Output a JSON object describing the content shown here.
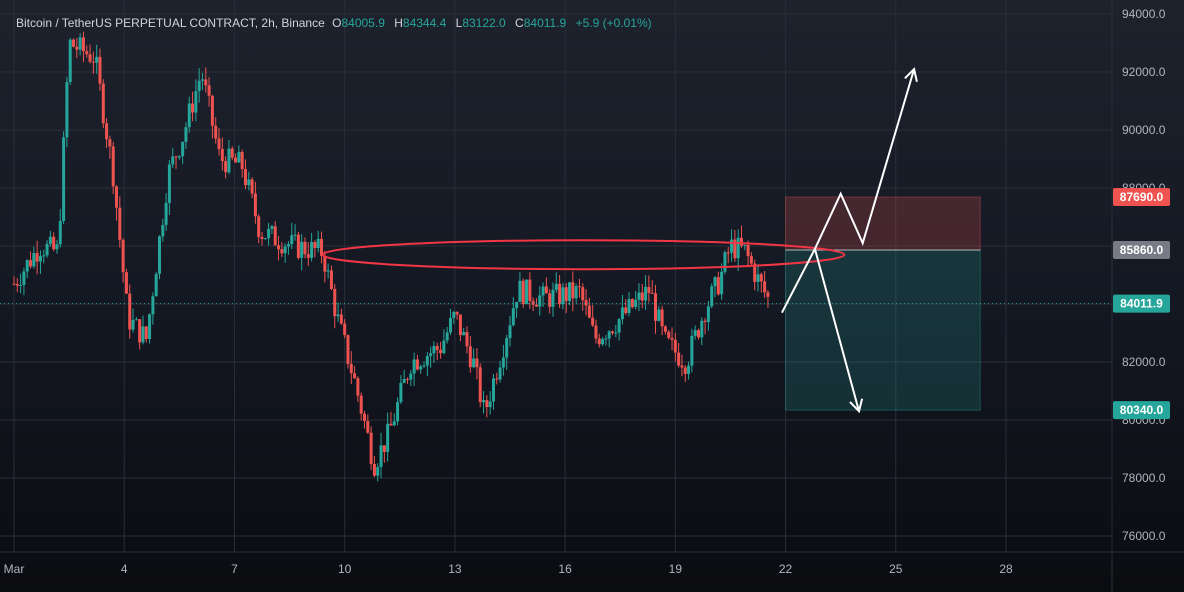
{
  "header": {
    "symbol": "Bitcoin / TetherUS PERPETUAL CONTRACT, 2h, Binance",
    "o_label": "O",
    "o_value": "84005.9",
    "h_label": "H",
    "h_value": "84344.4",
    "l_label": "L",
    "l_value": "83122.0",
    "c_label": "C",
    "c_value": "84011.9",
    "change": "+5.9 (+0.01%)"
  },
  "colors": {
    "up": "#26a69a",
    "down": "#ef5350",
    "target_zone": "#26a69a",
    "stop_zone": "#ef5350",
    "entry_badge": "#787b86",
    "grid": "#2a2e39",
    "arrows": "#ffffff",
    "ellipse": "#f23645"
  },
  "chart_data": {
    "type": "candlestick",
    "x_tick_labels": [
      "Mar",
      "4",
      "7",
      "10",
      "13",
      "16",
      "19",
      "22",
      "25",
      "28"
    ],
    "y_tick_labels": [
      "94000.0",
      "92000.0",
      "90000.0",
      "88000.0",
      "86000.0",
      "84000.0",
      "82000.0",
      "80000.0",
      "78000.0",
      "76000.0"
    ],
    "y_ticks": [
      94000,
      92000,
      90000,
      88000,
      86000,
      84000,
      82000,
      80000,
      78000,
      76000
    ],
    "ylim": [
      75500,
      94300
    ],
    "last_price": 84011.9,
    "last_price_label": "84011.9",
    "position": {
      "direction": "short",
      "stop_label": "87690.0",
      "stop": 87690,
      "entry_label": "85860.0",
      "entry": 85860,
      "target_label": "80340.0",
      "target": 80340,
      "start_day": 22.0,
      "end_day": 27.3
    },
    "resistance_ellipse": {
      "day_start": 9.4,
      "day_end": 23.6,
      "price_top": 86200,
      "price_bottom": 85200
    },
    "scenario_path_up": [
      [
        21.9,
        83700
      ],
      [
        22.8,
        85900
      ],
      [
        23.5,
        87800
      ],
      [
        24.1,
        86100
      ],
      [
        25.5,
        92100
      ]
    ],
    "scenario_path_down": [
      [
        22.8,
        85900
      ],
      [
        24.0,
        80300
      ]
    ],
    "anchors": [
      [
        1.0,
        84700
      ],
      [
        1.7,
        86000
      ],
      [
        2.2,
        85800
      ],
      [
        2.5,
        93000
      ],
      [
        3.2,
        92500
      ],
      [
        3.7,
        88500
      ],
      [
        4.1,
        83500
      ],
      [
        4.6,
        82800
      ],
      [
        5.2,
        88500
      ],
      [
        5.6,
        89800
      ],
      [
        6.1,
        92000
      ],
      [
        6.6,
        89000
      ],
      [
        7.2,
        88800
      ],
      [
        7.7,
        86500
      ],
      [
        8.6,
        86000
      ],
      [
        9.4,
        85800
      ],
      [
        9.8,
        83500
      ],
      [
        10.3,
        81200
      ],
      [
        10.8,
        78500
      ],
      [
        11.2,
        79500
      ],
      [
        11.8,
        82000
      ],
      [
        12.6,
        82500
      ],
      [
        13.0,
        83600
      ],
      [
        13.5,
        82000
      ],
      [
        13.8,
        80200
      ],
      [
        14.3,
        82500
      ],
      [
        14.7,
        84500
      ],
      [
        15.4,
        84200
      ],
      [
        16.4,
        84400
      ],
      [
        16.8,
        82800
      ],
      [
        17.5,
        83500
      ],
      [
        18.3,
        84500
      ],
      [
        18.7,
        82700
      ],
      [
        19.3,
        82000
      ],
      [
        19.8,
        83800
      ],
      [
        20.2,
        84800
      ],
      [
        20.5,
        86000
      ],
      [
        20.9,
        85800
      ],
      [
        21.3,
        84700
      ],
      [
        21.6,
        84000
      ]
    ]
  }
}
